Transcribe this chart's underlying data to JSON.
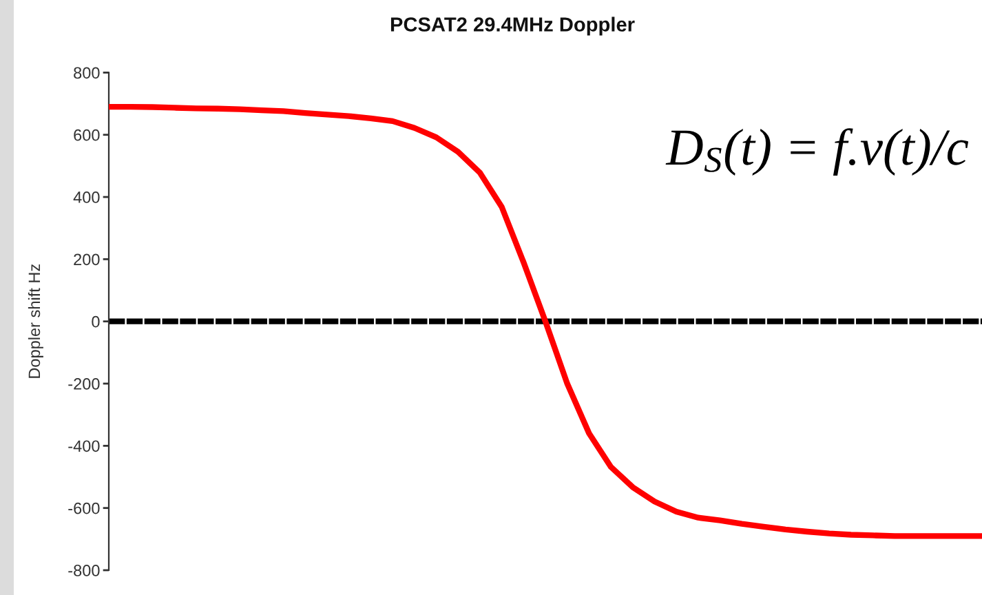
{
  "chart_data": {
    "type": "line",
    "title": "PCSAT2 29.4MHz Doppler",
    "ylabel": "Doppler shift Hz",
    "annotations": [
      "D$_{S}$(t) = f.v(t)/c"
    ],
    "categories": [
      null,
      null,
      null,
      null,
      null,
      null,
      null,
      null,
      null,
      null,
      null,
      null,
      null,
      null,
      null,
      null,
      null,
      null,
      null,
      null,
      null,
      null,
      null,
      null,
      null,
      null,
      null,
      null,
      null,
      null,
      null,
      null,
      null,
      null,
      null,
      null,
      null,
      null,
      null,
      null,
      null
    ],
    "series": [
      {
        "color": "#ff0000",
        "values": [
          690,
          690,
          689,
          687,
          685,
          684,
          682,
          679,
          676,
          670,
          665,
          660,
          653,
          644,
          622,
          592,
          545,
          478,
          368,
          190,
          0,
          -200,
          -360,
          -468,
          -533,
          -579,
          -612,
          -631,
          -640,
          -651,
          -660,
          -669,
          -676,
          -682,
          -686,
          -688,
          -690,
          -690,
          -690,
          -690,
          -690
        ]
      }
    ],
    "ref_lines": [
      {
        "axis": "y",
        "value": 0,
        "color": "#000000",
        "line_style": "dashed"
      }
    ],
    "ylim": [
      -800,
      800
    ],
    "yticks": [
      -800,
      -600,
      -400,
      -200,
      0,
      200,
      400,
      600,
      800
    ],
    "tick_labels": "y"
  }
}
